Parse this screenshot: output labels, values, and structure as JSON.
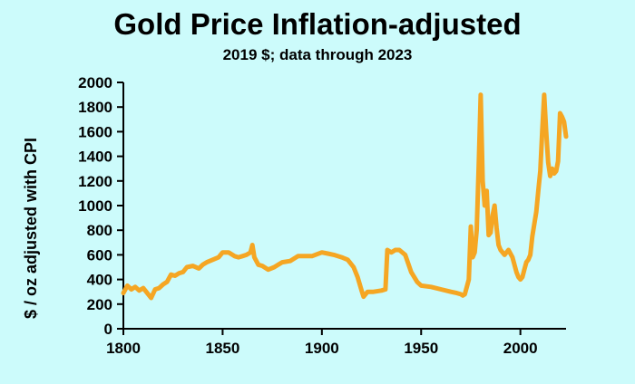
{
  "chart_data": {
    "type": "line",
    "title": "Gold Price Inflation-adjusted",
    "subtitle": "2019 $; data through 2023",
    "xlabel": "",
    "ylabel": "$ / oz adjusted with CPI",
    "xlim": [
      1800,
      2023
    ],
    "ylim": [
      0,
      2000
    ],
    "x_ticks": [
      1800,
      1850,
      1900,
      1950,
      2000
    ],
    "y_ticks": [
      0,
      200,
      400,
      600,
      800,
      1000,
      1200,
      1400,
      1600,
      1800,
      2000
    ],
    "grid": false,
    "line_color": "#f5a623",
    "series": [
      {
        "name": "",
        "x": [
          1800,
          1802,
          1804,
          1806,
          1808,
          1810,
          1812,
          1814,
          1816,
          1818,
          1820,
          1822,
          1824,
          1826,
          1828,
          1830,
          1832,
          1835,
          1838,
          1840,
          1842,
          1845,
          1848,
          1850,
          1853,
          1856,
          1858,
          1860,
          1862,
          1864,
          1865,
          1866,
          1868,
          1870,
          1873,
          1876,
          1878,
          1880,
          1884,
          1888,
          1890,
          1895,
          1900,
          1903,
          1906,
          1910,
          1913,
          1916,
          1918,
          1920,
          1921,
          1923,
          1926,
          1930,
          1932,
          1933,
          1935,
          1937,
          1939,
          1942,
          1945,
          1948,
          1950,
          1955,
          1960,
          1965,
          1968,
          1970,
          1971,
          1972,
          1973,
          1974,
          1975,
          1976,
          1977,
          1978,
          1979,
          1980,
          1981,
          1982,
          1983,
          1984,
          1985,
          1986,
          1987,
          1988,
          1989,
          1990,
          1992,
          1994,
          1996,
          1998,
          1999,
          2000,
          2001,
          2002,
          2003,
          2004,
          2005,
          2006,
          2007,
          2008,
          2009,
          2010,
          2011,
          2012,
          2013,
          2014,
          2015,
          2016,
          2017,
          2018,
          2019,
          2020,
          2021,
          2022,
          2023
        ],
        "values": [
          290,
          350,
          320,
          340,
          310,
          330,
          290,
          250,
          320,
          330,
          360,
          380,
          440,
          430,
          450,
          460,
          500,
          510,
          490,
          520,
          540,
          560,
          580,
          620,
          620,
          590,
          580,
          590,
          600,
          620,
          680,
          580,
          520,
          510,
          480,
          500,
          520,
          540,
          550,
          590,
          590,
          590,
          620,
          610,
          600,
          580,
          560,
          500,
          420,
          310,
          260,
          300,
          300,
          310,
          320,
          640,
          620,
          640,
          640,
          600,
          460,
          380,
          350,
          340,
          320,
          300,
          290,
          280,
          270,
          280,
          340,
          400,
          830,
          580,
          620,
          800,
          1320,
          1900,
          1200,
          1000,
          1120,
          760,
          780,
          920,
          1000,
          820,
          680,
          640,
          600,
          640,
          580,
          460,
          420,
          400,
          420,
          480,
          540,
          560,
          600,
          750,
          850,
          950,
          1120,
          1280,
          1600,
          1900,
          1600,
          1350,
          1240,
          1300,
          1260,
          1280,
          1360,
          1750,
          1720,
          1680,
          1560
        ]
      }
    ]
  }
}
